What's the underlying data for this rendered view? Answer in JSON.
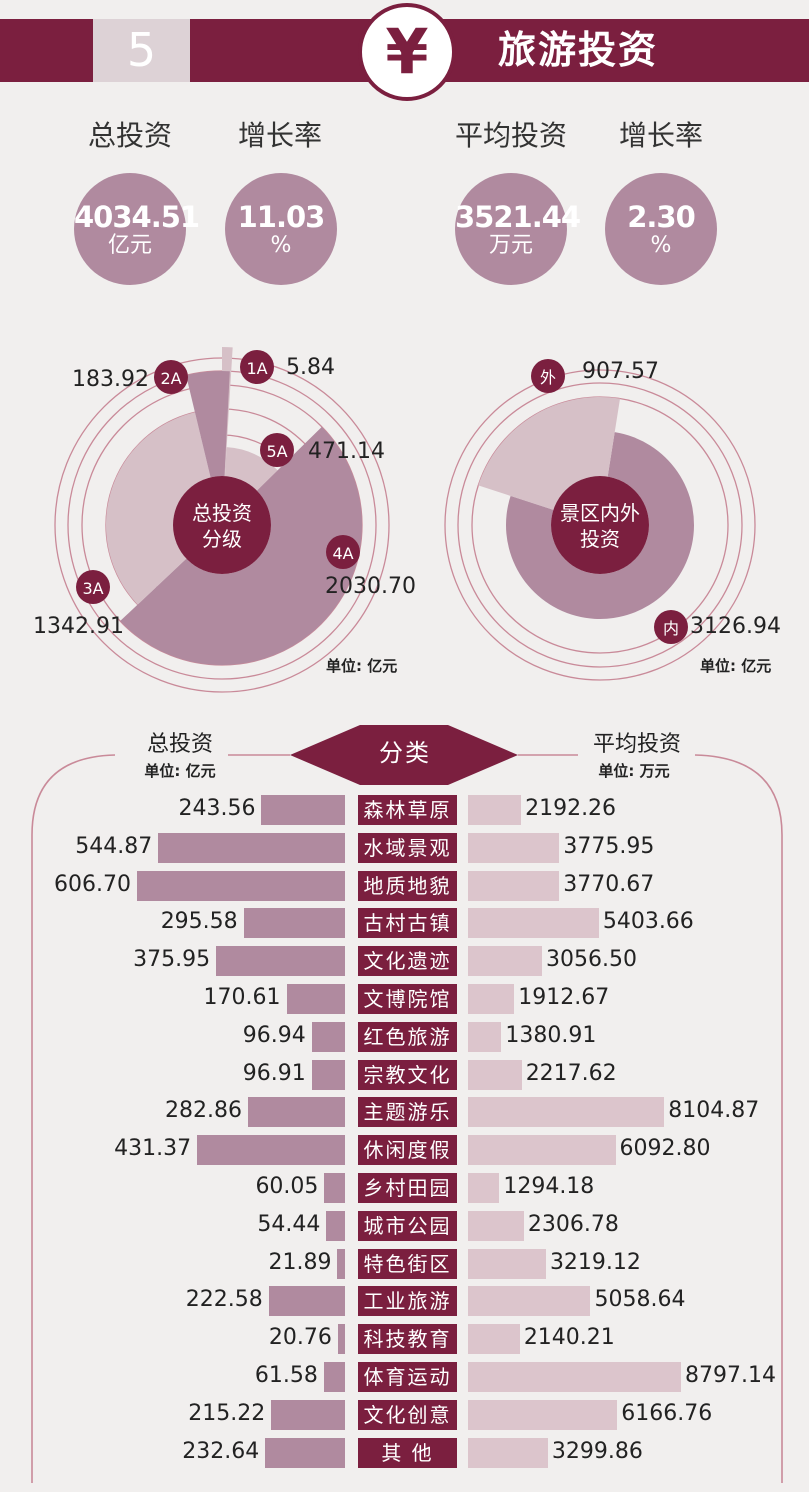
{
  "header": {
    "number": "5",
    "icon": "yen-icon",
    "title": "旅游投资"
  },
  "stats": [
    {
      "label": "总投资",
      "value": "4034.51",
      "unit": "亿元"
    },
    {
      "label": "增长率",
      "value": "11.03",
      "unit": "%"
    },
    {
      "label": "平均投资",
      "value": "3521.44",
      "unit": "万元"
    },
    {
      "label": "增长率",
      "value": "2.30",
      "unit": "%"
    }
  ],
  "colors": {
    "maroon": "#7b1f3f",
    "mauve": "#b08a9f",
    "pink": "#dcc5cc",
    "light": "#d6c0c7"
  },
  "chart_data": [
    {
      "type": "pie",
      "center_label": [
        "总投资",
        "分级"
      ],
      "unit_note": "单位: 亿元",
      "slices": [
        {
          "name": "1A",
          "value": 5.84,
          "label": "5.84"
        },
        {
          "name": "5A",
          "value": 471.14,
          "label": "471.14"
        },
        {
          "name": "4A",
          "value": 2030.7,
          "label": "2030.70"
        },
        {
          "name": "3A",
          "value": 1342.91,
          "label": "1342.91"
        },
        {
          "name": "2A",
          "value": 183.92,
          "label": "183.92"
        }
      ]
    },
    {
      "type": "pie",
      "center_label": [
        "景区内外",
        "投资"
      ],
      "unit_note": "单位: 亿元",
      "slices": [
        {
          "name": "内",
          "value": 3126.94,
          "label": "3126.94"
        },
        {
          "name": "外",
          "value": 907.57,
          "label": "907.57"
        }
      ]
    },
    {
      "type": "bar",
      "center_header": "分类",
      "left_header": "总投资",
      "left_unit": "单位: 亿元",
      "right_header": "平均投资",
      "right_unit": "单位: 万元",
      "categories": [
        "森林草原",
        "水域景观",
        "地质地貌",
        "古村古镇",
        "文化遗迹",
        "文博院馆",
        "红色旅游",
        "宗教文化",
        "主题游乐",
        "休闲度假",
        "乡村田园",
        "城市公园",
        "特色街区",
        "工业旅游",
        "科技教育",
        "体育运动",
        "文化创意",
        "其 他"
      ],
      "series": [
        {
          "name": "总投资",
          "values": [
            243.56,
            544.87,
            606.7,
            295.58,
            375.95,
            170.61,
            96.94,
            96.91,
            282.86,
            431.37,
            60.05,
            54.44,
            21.89,
            222.58,
            20.76,
            61.58,
            215.22,
            232.64
          ],
          "labels": [
            "243.56",
            "544.87",
            "606.70",
            "295.58",
            "375.95",
            "170.61",
            "96.94",
            "96.91",
            "282.86",
            "431.37",
            "60.05",
            "54.44",
            "21.89",
            "222.58",
            "20.76",
            "61.58",
            "215.22",
            "232.64"
          ]
        },
        {
          "name": "平均投资",
          "values": [
            2192.26,
            3775.95,
            3770.67,
            5403.66,
            3056.5,
            1912.67,
            1380.91,
            2217.62,
            8104.87,
            6092.8,
            1294.18,
            2306.78,
            3219.12,
            5058.64,
            2140.21,
            8797.14,
            6166.76,
            3299.86
          ],
          "labels": [
            "2192.26",
            "3775.95",
            "3770.67",
            "5403.66",
            "3056.50",
            "1912.67",
            "1380.91",
            "2217.62",
            "8104.87",
            "6092.80",
            "1294.18",
            "2306.78",
            "3219.12",
            "5058.64",
            "2140.21",
            "8797.14",
            "6166.76",
            "3299.86"
          ]
        }
      ]
    }
  ]
}
